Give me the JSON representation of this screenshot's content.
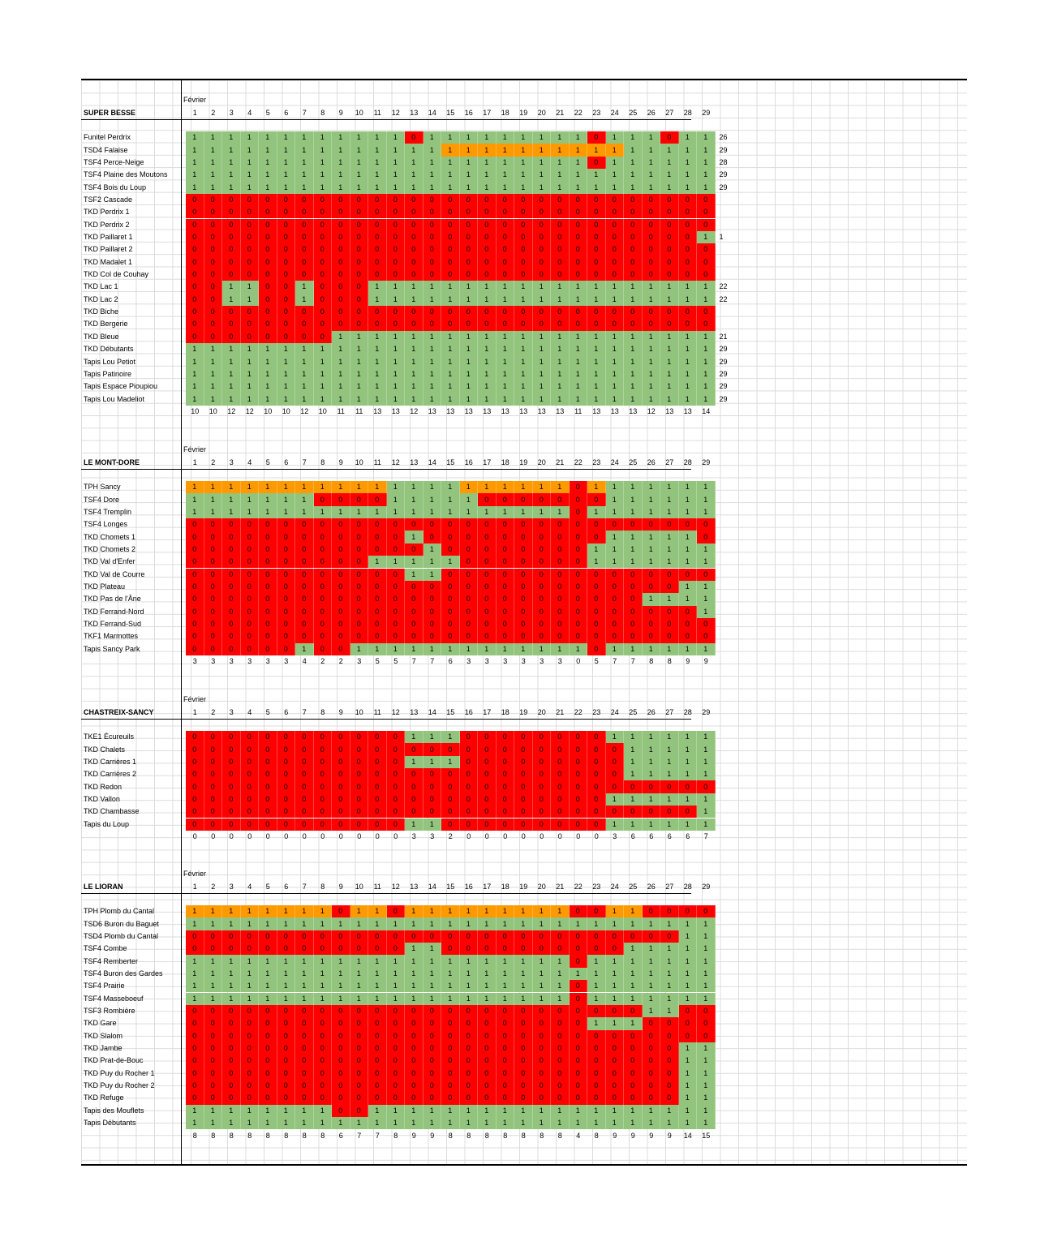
{
  "sections": [
    {
      "title": "SUPER BESSE",
      "month": "Février",
      "days": [
        "1",
        "2",
        "3",
        "4",
        "5",
        "6",
        "7",
        "8",
        "9",
        "10",
        "11",
        "12",
        "13",
        "14",
        "15",
        "16",
        "17",
        "18",
        "19",
        "20",
        "21",
        "22",
        "23",
        "24",
        "25",
        "26",
        "27",
        "28",
        "29"
      ],
      "rows": [
        {
          "name": "Funitel Perdrix",
          "cells": "ggggggggggggrgggggggggrgggrggg",
          "total": "26"
        },
        {
          "name": "TSD4 Falaise",
          "cells": "ggggggggggggggoooooooooogggggg",
          "total": "29"
        },
        {
          "name": "TSF4 Perce-Neige",
          "cells": "ggggggggggggggggggggggrggggggg",
          "total": "28"
        },
        {
          "name": "TSF4 Plaine des Moutons",
          "cells": "ggggggggggggggggggggggggggggggg",
          "total": "29"
        },
        {
          "name": "TSF4 Bois du Loup",
          "cells": "ggggggggggggggggggggggggggggggg",
          "total": "29"
        },
        {
          "name": "TSF2 Cascade",
          "cells": "rrrrrrrrrrrrrrrrrrrrrrrrrrrrr",
          "total": ""
        },
        {
          "name": "TKD Perdrix 1",
          "cells": "rrrrrrrrrrrrrrrrrrrrrrrrrrrrr",
          "total": ""
        },
        {
          "name": "TKD Perdrix 2",
          "cells": "rrrrrrrrrrrrrrrrrrrrrrrrrrrrr",
          "total": ""
        },
        {
          "name": "TKD Paillaret 1",
          "cells": "rrrrrrrrrrrrrrrrrrrrrrrrrrrrg",
          "total": "1"
        },
        {
          "name": "TKD Paillaret 2",
          "cells": "rrrrrrrrrrrrrrrrrrrrrrrrrrrrr",
          "total": ""
        },
        {
          "name": "TKD Madalet 1",
          "cells": "rrrrrrrrrrrrrrrrrrrrrrrrrrrrr",
          "total": ""
        },
        {
          "name": "TKD Col de Couhay",
          "cells": "rrrrrrrrrrrrrrrrrrrrrrrrrrrrr",
          "total": ""
        },
        {
          "name": "TKD Lac 1",
          "cells": "rrggrrgrrrgggggggggggggggggggg",
          "total": "22"
        },
        {
          "name": "TKD Lac 2",
          "cells": "rrggrrgrrrgggggggggggggggggggg",
          "total": "22"
        },
        {
          "name": "TKD Biche",
          "cells": "rrrrrrrrrrrrrrrrrrrrrrrrrrrrr",
          "total": ""
        },
        {
          "name": "TKD Bergerie",
          "cells": "rrrrrrrrrrrrrrrrrrrrrrrrrrrrr",
          "total": ""
        },
        {
          "name": "TKD Bleue",
          "cells": "rrrrrrrrgggggggggggggggggggggg",
          "total": "21"
        },
        {
          "name": "TKD Débutants",
          "cells": "ggggggggggggggggggggggggggggggg",
          "total": "29"
        },
        {
          "name": "Tapis Lou Petiot",
          "cells": "ggggggggggggggggggggggggggggggg",
          "total": "29"
        },
        {
          "name": "Tapis Patinoire",
          "cells": "ggggggggggggggggggggggggggggggg",
          "total": "29"
        },
        {
          "name": "Tapis Espace Pioupiou",
          "cells": "ggggggggggggggggggggggggggggggg",
          "total": "29"
        },
        {
          "name": "Tapis Lou Madeliot",
          "cells": "ggggggggggggggggggggggggggggggg",
          "total": "29"
        }
      ],
      "totals": [
        "10",
        "10",
        "12",
        "12",
        "10",
        "10",
        "12",
        "10",
        "11",
        "11",
        "13",
        "13",
        "12",
        "13",
        "13",
        "13",
        "13",
        "13",
        "13",
        "13",
        "13",
        "11",
        "13",
        "13",
        "13",
        "12",
        "13",
        "13",
        "14"
      ]
    },
    {
      "title": "LE MONT-DORE",
      "month": "Février",
      "days": [
        "1",
        "2",
        "3",
        "4",
        "5",
        "6",
        "7",
        "8",
        "9",
        "10",
        "11",
        "12",
        "13",
        "14",
        "15",
        "16",
        "17",
        "18",
        "19",
        "20",
        "21",
        "22",
        "23",
        "24",
        "25",
        "26",
        "27",
        "28",
        "29"
      ],
      "rows": [
        {
          "name": "TPH Sancy",
          "cells": "oooooooooooggggoooooorogggggg",
          "total": ""
        },
        {
          "name": "TSF4 Dore",
          "cells": "gggggggrrrrgggggrrrrrrrgggggg",
          "total": ""
        },
        {
          "name": "TSF4 Tremplin",
          "cells": "gggggggggggggggggggggrgggggggg",
          "total": ""
        },
        {
          "name": "TSF4 Longes",
          "cells": "rrrrrrrrrrrrrrrrrrrrrrrrrrrrr",
          "total": ""
        },
        {
          "name": "TKD Chomets 1",
          "cells": "rrrrrrrrrrrrgrrrrrrrrrrgggggr",
          "total": ""
        },
        {
          "name": "TKD Chomets 2",
          "cells": "rrrrrrrrrrrrrgrrrrrrrrgggggggg",
          "total": ""
        },
        {
          "name": "TKD Val d'Enfer",
          "cells": "rrrrrrrrrrgggggrrrrrrrgggggggg",
          "total": ""
        },
        {
          "name": "TKD Val de Courre",
          "cells": "rrrrrrrrrrrrggrrrrrrrrrrrrrrr",
          "total": ""
        },
        {
          "name": "TKD Plateau",
          "cells": "rrrrrrrrrrrrrrrrrrrrrrrrrrrgg",
          "total": ""
        },
        {
          "name": "TKD Pas de l'Âne",
          "cells": "rrrrrrrrrrrrrrrrrrrrrrrrrgggg",
          "total": ""
        },
        {
          "name": "TKD Ferrand-Nord",
          "cells": "rrrrrrrrrrrrrrrrrrrrrrrrrrrrg",
          "total": ""
        },
        {
          "name": "TKD Ferrand-Sud",
          "cells": "rrrrrrrrrrrrrrrrrrrrrrrrrrrrr",
          "total": ""
        },
        {
          "name": "TKF1 Marmottes",
          "cells": "rrrrrrrrrrrrrrrrrrrrrrrrrrrrr",
          "total": ""
        },
        {
          "name": "Tapis Sancy Park",
          "cells": "rrrrrrgrrgggggggggggggrgggggg",
          "total": ""
        }
      ],
      "totals": [
        "3",
        "3",
        "3",
        "3",
        "3",
        "3",
        "4",
        "2",
        "2",
        "3",
        "5",
        "5",
        "7",
        "7",
        "6",
        "3",
        "3",
        "3",
        "3",
        "3",
        "3",
        "0",
        "5",
        "7",
        "7",
        "8",
        "8",
        "9",
        "9"
      ]
    },
    {
      "title": "CHASTREIX-SANCY",
      "month": "Février",
      "days": [
        "1",
        "2",
        "3",
        "4",
        "5",
        "6",
        "7",
        "8",
        "9",
        "10",
        "11",
        "12",
        "13",
        "14",
        "15",
        "16",
        "17",
        "18",
        "19",
        "20",
        "21",
        "22",
        "23",
        "24",
        "25",
        "26",
        "27",
        "28",
        "29"
      ],
      "rows": [
        {
          "name": "TKE1 Écureuils",
          "cells": "rrrrrrrrrrrrgggrrrrrrrrgggggg",
          "total": ""
        },
        {
          "name": "TKD Chalets",
          "cells": "rrrrrrrrrrrrrrrrrrrrrrrrggggg",
          "total": ""
        },
        {
          "name": "TKD Carrières 1",
          "cells": "rrrrrrrrrrrrgggrrrrrrrrrggggg",
          "total": ""
        },
        {
          "name": "TKD Carrières 2",
          "cells": "rrrrrrrrrrrrrrrrrrrrrrrrggggg",
          "total": ""
        },
        {
          "name": "TKD Redon",
          "cells": "rrrrrrrrrrrrrrrrrrrrrrrrrrrrr",
          "total": ""
        },
        {
          "name": "TKD Vallon",
          "cells": "rrrrrrrrrrrrrrrrrrrrrrrgggggg",
          "total": ""
        },
        {
          "name": "TKD Chambasse",
          "cells": "rrrrrrrrrrrrrrrrrrrrrrrrrrrrg",
          "total": ""
        },
        {
          "name": "Tapis du Loup",
          "cells": "rrrrrrrrrrrrggrrrrrrrrrgggggg",
          "total": ""
        }
      ],
      "totals": [
        "0",
        "0",
        "0",
        "0",
        "0",
        "0",
        "0",
        "0",
        "0",
        "0",
        "0",
        "0",
        "3",
        "3",
        "2",
        "0",
        "0",
        "0",
        "0",
        "0",
        "0",
        "0",
        "0",
        "3",
        "6",
        "6",
        "6",
        "6",
        "7"
      ]
    },
    {
      "title": "LE LIORAN",
      "month": "Février",
      "days": [
        "1",
        "2",
        "3",
        "4",
        "5",
        "6",
        "7",
        "8",
        "9",
        "10",
        "11",
        "12",
        "13",
        "14",
        "15",
        "16",
        "17",
        "18",
        "19",
        "20",
        "21",
        "22",
        "23",
        "24",
        "25",
        "26",
        "27",
        "28",
        "29"
      ],
      "rows": [
        {
          "name": "TPH Plomb du Cantal",
          "cells": "ooooooooroorooooooooorroorrrrg",
          "total": ""
        },
        {
          "name": "TSD6 Buron du Baguet",
          "cells": "ggggggggggggggggggggggggggggg",
          "total": ""
        },
        {
          "name": "TSD4 Plomb du Cantal",
          "cells": "rrrrrrrrrrrrrrrrrrrrrrrrrrrgg",
          "total": ""
        },
        {
          "name": "TSF4 Combe",
          "cells": "rrrrrrrrrrrrggrrrrrrrrrrggggg",
          "total": ""
        },
        {
          "name": "TSF4 Remberter",
          "cells": "gggggggggggggggggggggrgggggggg",
          "total": ""
        },
        {
          "name": "TSF4 Buron des Gardes",
          "cells": "ggggggggggggggggggggggggggggg",
          "total": ""
        },
        {
          "name": "TSF4 Prairie",
          "cells": "gggggggggggggggggggggrgggggggg",
          "total": ""
        },
        {
          "name": "TSF4 Masseboeuf",
          "cells": "gggggggggggggggggggggrgggggggg",
          "total": ""
        },
        {
          "name": "TSF3 Rombière",
          "cells": "rrrrrrrrrrrrrrrrrrrrrrrrrggrr",
          "total": ""
        },
        {
          "name": "TKD Gare",
          "cells": "rrrrrrrrrrrrrrrrrrrrrrgggrrrr",
          "total": ""
        },
        {
          "name": "TKD Slalom",
          "cells": "rrrrrrrrrrrrrrrrrrrrrrrrrrrrr",
          "total": ""
        },
        {
          "name": "TKD Jambe",
          "cells": "rrrrrrrrrrrrrrrrrrrrrrrrrrrgg",
          "total": ""
        },
        {
          "name": "TKD Prat-de-Bouc",
          "cells": "rrrrrrrrrrrrrrrrrrrrrrrrrrrgg",
          "total": ""
        },
        {
          "name": "TKD Puy du Rocher 1",
          "cells": "rrrrrrrrrrrrrrrrrrrrrrrrrrrgg",
          "total": ""
        },
        {
          "name": "TKD Puy du Rocher 2",
          "cells": "rrrrrrrrrrrrrrrrrrrrrrrrrrrgg",
          "total": ""
        },
        {
          "name": "TKD Refuge",
          "cells": "rrrrrrrrrrrrrrrrrrrrrrrrrrrgg",
          "total": ""
        },
        {
          "name": "Tapis des Mouflets",
          "cells": "ggggggggrrggggggggggggggggggg",
          "total": ""
        },
        {
          "name": "Tapis Débutants",
          "cells": "ggggggggggggggggggggggggggggg",
          "total": ""
        }
      ],
      "totals": [
        "8",
        "8",
        "8",
        "8",
        "8",
        "8",
        "8",
        "8",
        "6",
        "7",
        "7",
        "8",
        "9",
        "9",
        "8",
        "8",
        "8",
        "8",
        "8",
        "8",
        "8",
        "4",
        "8",
        "9",
        "9",
        "9",
        "9",
        "14",
        "15"
      ]
    }
  ],
  "colors": {
    "open": "#93c47d",
    "closed": "#ff0000",
    "partial": "#ff9900",
    "border": "#000000",
    "grid": "#dcdcdc"
  },
  "values": {
    "open": "1",
    "closed": "0",
    "partial": "1"
  }
}
